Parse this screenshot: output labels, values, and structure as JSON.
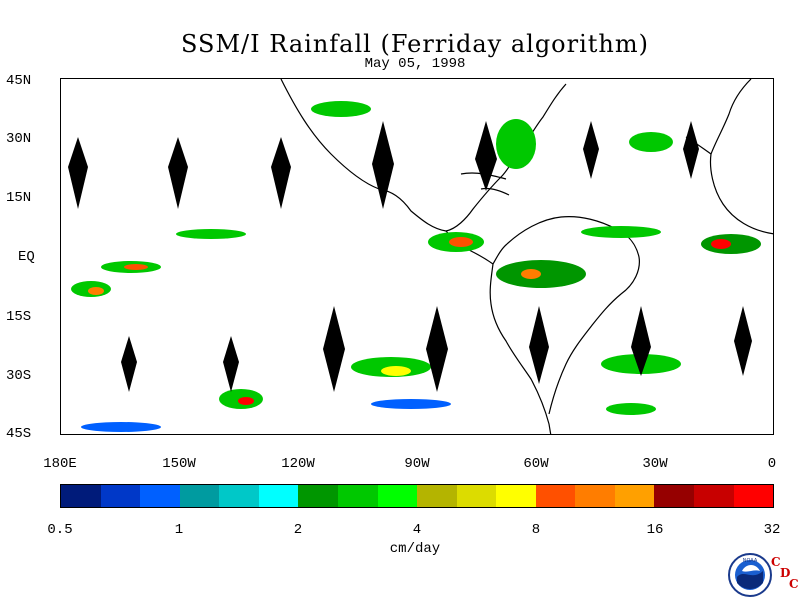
{
  "title": "SSM/I Rainfall (Ferriday algorithm)",
  "date": "May 05, 1998",
  "lat_labels": [
    "45N",
    "30N",
    "15N",
    "EQ",
    "15S",
    "30S",
    "45S"
  ],
  "lon_labels": [
    "180E",
    "150W",
    "120W",
    "90W",
    "60W",
    "30W",
    "0"
  ],
  "colorbar": {
    "colors": [
      "#001b7a",
      "#0038c8",
      "#0060ff",
      "#009ba0",
      "#00c8c8",
      "#00ffff",
      "#009600",
      "#00c800",
      "#00ff00",
      "#b4b400",
      "#dcdc00",
      "#ffff00",
      "#ff5000",
      "#ff7d00",
      "#ffa000",
      "#960000",
      "#c80000",
      "#ff0000"
    ],
    "tick_labels": [
      "0.5",
      "1",
      "2",
      "4",
      "8",
      "16",
      "32"
    ],
    "unit": "cm/day"
  },
  "logo": {
    "text": "NOAA",
    "letters": [
      "C",
      "D",
      "C"
    ]
  }
}
